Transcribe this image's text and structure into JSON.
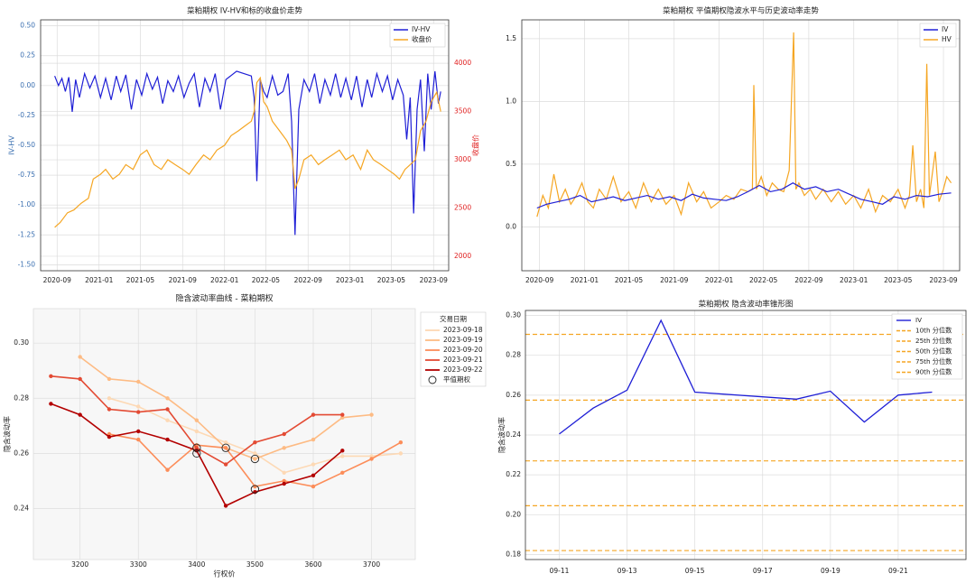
{
  "chart_data": [
    {
      "type": "line",
      "title": "菜粕期权 IV-HV和标的收盘价走势",
      "xlabel": "",
      "ylabel": "IV-HV",
      "ylabel_right": "收盘价",
      "ylim": [
        -1.55,
        0.55
      ],
      "ylim_right": [
        1850,
        4450
      ],
      "yticks": [
        0.5,
        0.25,
        0.0,
        -0.25,
        -0.5,
        -0.75,
        -1.0,
        -1.25,
        -1.5
      ],
      "yticks_right": [
        4000,
        3500,
        3000,
        2500,
        2000
      ],
      "xticks": [
        "2020-09",
        "2021-01",
        "2021-05",
        "2021-09",
        "2022-01",
        "2022-05",
        "2022-09",
        "2023-01",
        "2023-05",
        "2023-09"
      ],
      "xrange": [
        "2020-07-15",
        "2023-10-15"
      ],
      "grid": true,
      "legend": "top-right",
      "colors": {
        "IV-HV": "#1f1fd6",
        "收盘价": "#f5a623",
        "right_axis": "#e02020",
        "left_axis": "#3a6fb0"
      },
      "series": [
        {
          "name": "IV-HV",
          "axis": "left",
          "x": [
            "2020-08-25",
            "2020-09-05",
            "2020-09-15",
            "2020-09-25",
            "2020-10-05",
            "2020-10-15",
            "2020-10-25",
            "2020-11-05",
            "2020-11-20",
            "2020-12-05",
            "2020-12-20",
            "2021-01-05",
            "2021-01-20",
            "2021-02-05",
            "2021-02-20",
            "2021-03-05",
            "2021-03-20",
            "2021-04-05",
            "2021-04-20",
            "2021-05-05",
            "2021-05-20",
            "2021-06-05",
            "2021-06-20",
            "2021-07-05",
            "2021-07-20",
            "2021-08-05",
            "2021-08-20",
            "2021-09-05",
            "2021-09-20",
            "2021-10-05",
            "2021-10-20",
            "2021-11-05",
            "2021-11-20",
            "2021-12-05",
            "2021-12-20",
            "2022-01-05",
            "2022-02-05",
            "2022-03-20",
            "2022-03-28",
            "2022-04-05",
            "2022-04-15",
            "2022-04-25",
            "2022-05-05",
            "2022-05-20",
            "2022-06-05",
            "2022-06-20",
            "2022-07-05",
            "2022-07-15",
            "2022-07-25",
            "2022-08-05",
            "2022-08-20",
            "2022-09-05",
            "2022-09-20",
            "2022-10-05",
            "2022-10-20",
            "2022-11-05",
            "2022-11-20",
            "2022-12-05",
            "2022-12-20",
            "2023-01-05",
            "2023-01-20",
            "2023-02-05",
            "2023-02-20",
            "2023-03-05",
            "2023-03-20",
            "2023-04-05",
            "2023-04-20",
            "2023-05-05",
            "2023-05-20",
            "2023-06-05",
            "2023-06-15",
            "2023-06-25",
            "2023-07-05",
            "2023-07-15",
            "2023-07-25",
            "2023-08-05",
            "2023-08-15",
            "2023-08-25",
            "2023-09-05",
            "2023-09-15",
            "2023-09-22"
          ],
          "values": [
            0.08,
            0.0,
            0.06,
            -0.05,
            0.07,
            -0.22,
            0.05,
            -0.1,
            0.1,
            -0.02,
            0.08,
            -0.1,
            0.06,
            -0.12,
            0.08,
            -0.05,
            0.09,
            -0.2,
            0.05,
            -0.08,
            0.1,
            -0.03,
            0.07,
            -0.15,
            0.04,
            -0.05,
            0.08,
            -0.1,
            0.02,
            0.1,
            -0.18,
            0.06,
            -0.05,
            0.1,
            -0.2,
            0.05,
            0.12,
            0.08,
            -0.1,
            -0.8,
            0.05,
            -0.05,
            -0.1,
            0.08,
            -0.08,
            -0.05,
            0.1,
            -0.3,
            -1.25,
            -0.2,
            0.05,
            -0.05,
            0.1,
            -0.15,
            0.05,
            -0.08,
            0.1,
            -0.1,
            0.06,
            -0.12,
            0.08,
            -0.18,
            0.05,
            -0.1,
            0.1,
            -0.05,
            0.08,
            -0.12,
            0.05,
            -0.08,
            -0.45,
            -0.1,
            -1.07,
            -0.2,
            0.05,
            -0.55,
            0.1,
            -0.2,
            0.12,
            -0.15,
            -0.05
          ]
        },
        {
          "name": "收盘价",
          "axis": "right",
          "x": [
            "2020-08-25",
            "2020-09-10",
            "2020-10-01",
            "2020-10-20",
            "2020-11-10",
            "2020-12-01",
            "2020-12-15",
            "2021-01-05",
            "2021-01-20",
            "2021-02-10",
            "2021-03-01",
            "2021-03-20",
            "2021-04-10",
            "2021-05-01",
            "2021-05-20",
            "2021-06-10",
            "2021-07-01",
            "2021-07-20",
            "2021-08-10",
            "2021-09-01",
            "2021-09-20",
            "2021-10-10",
            "2021-11-01",
            "2021-11-20",
            "2021-12-10",
            "2022-01-01",
            "2022-01-20",
            "2022-02-10",
            "2022-03-01",
            "2022-03-20",
            "2022-03-28",
            "2022-04-05",
            "2022-04-15",
            "2022-04-25",
            "2022-05-05",
            "2022-05-20",
            "2022-06-10",
            "2022-07-01",
            "2022-07-15",
            "2022-07-25",
            "2022-08-05",
            "2022-08-20",
            "2022-09-10",
            "2022-10-01",
            "2022-10-20",
            "2022-11-10",
            "2022-12-01",
            "2022-12-20",
            "2023-01-10",
            "2023-02-01",
            "2023-02-20",
            "2023-03-10",
            "2023-04-01",
            "2023-04-20",
            "2023-05-10",
            "2023-05-25",
            "2023-06-10",
            "2023-06-25",
            "2023-07-10",
            "2023-07-25",
            "2023-08-10",
            "2023-08-25",
            "2023-09-10",
            "2023-09-22"
          ],
          "values": [
            2300,
            2350,
            2450,
            2480,
            2550,
            2600,
            2800,
            2850,
            2900,
            2800,
            2850,
            2950,
            2900,
            3050,
            3100,
            2950,
            2900,
            3000,
            2950,
            2900,
            2850,
            2950,
            3050,
            3000,
            3100,
            3150,
            3250,
            3300,
            3350,
            3400,
            3500,
            3800,
            3850,
            3600,
            3550,
            3400,
            3300,
            3200,
            3100,
            2700,
            2800,
            3000,
            3050,
            2950,
            3000,
            3050,
            3100,
            3000,
            3050,
            2900,
            3100,
            3000,
            2950,
            2900,
            2850,
            2800,
            2900,
            2950,
            3000,
            3300,
            3400,
            3600,
            3700,
            3500
          ]
        }
      ]
    },
    {
      "type": "line",
      "title": "菜粕期权 平值期权隐波水平与历史波动率走势",
      "xlabel": "",
      "ylabel": "",
      "ylim": [
        -0.35,
        1.65
      ],
      "yticks": [
        1.5,
        1.0,
        0.5,
        0.0
      ],
      "xticks": [
        "2020-09",
        "2021-01",
        "2021-05",
        "2021-09",
        "2022-01",
        "2022-05",
        "2022-09",
        "2023-01",
        "2023-05",
        "2023-09"
      ],
      "xrange": [
        "2020-07-15",
        "2023-10-15"
      ],
      "grid": true,
      "legend": "top-right",
      "colors": {
        "IV": "#1f1fd6",
        "HV": "#f5a623"
      },
      "series": [
        {
          "name": "IV",
          "x": [
            "2020-08-25",
            "2020-09-20",
            "2020-10-20",
            "2020-11-20",
            "2020-12-20",
            "2021-01-20",
            "2021-02-20",
            "2021-03-20",
            "2021-04-20",
            "2021-05-20",
            "2021-06-20",
            "2021-07-20",
            "2021-08-20",
            "2021-09-20",
            "2021-10-20",
            "2021-11-20",
            "2021-12-20",
            "2022-01-20",
            "2022-02-20",
            "2022-03-20",
            "2022-04-20",
            "2022-05-20",
            "2022-06-20",
            "2022-07-20",
            "2022-08-20",
            "2022-09-20",
            "2022-10-20",
            "2022-11-20",
            "2022-12-20",
            "2023-01-20",
            "2023-02-20",
            "2023-03-20",
            "2023-04-20",
            "2023-05-20",
            "2023-06-20",
            "2023-07-20",
            "2023-08-20",
            "2023-09-22"
          ],
          "values": [
            0.15,
            0.18,
            0.2,
            0.22,
            0.25,
            0.2,
            0.22,
            0.24,
            0.21,
            0.23,
            0.25,
            0.22,
            0.24,
            0.21,
            0.26,
            0.23,
            0.22,
            0.21,
            0.24,
            0.28,
            0.33,
            0.28,
            0.3,
            0.35,
            0.3,
            0.32,
            0.28,
            0.3,
            0.26,
            0.22,
            0.2,
            0.18,
            0.24,
            0.22,
            0.25,
            0.24,
            0.26,
            0.27
          ]
        },
        {
          "name": "HV",
          "x": [
            "2020-08-25",
            "2020-09-10",
            "2020-09-25",
            "2020-10-10",
            "2020-10-25",
            "2020-11-10",
            "2020-11-25",
            "2020-12-10",
            "2020-12-25",
            "2021-01-10",
            "2021-01-25",
            "2021-02-10",
            "2021-03-01",
            "2021-03-20",
            "2021-04-10",
            "2021-05-01",
            "2021-05-20",
            "2021-06-10",
            "2021-07-01",
            "2021-07-20",
            "2021-08-10",
            "2021-09-01",
            "2021-09-20",
            "2021-10-10",
            "2021-11-01",
            "2021-11-20",
            "2021-12-10",
            "2022-01-01",
            "2022-01-20",
            "2022-02-10",
            "2022-03-01",
            "2022-03-20",
            "2022-04-01",
            "2022-04-05",
            "2022-04-12",
            "2022-04-25",
            "2022-05-10",
            "2022-05-25",
            "2022-06-10",
            "2022-06-25",
            "2022-07-10",
            "2022-07-22",
            "2022-07-28",
            "2022-08-05",
            "2022-08-20",
            "2022-09-05",
            "2022-09-20",
            "2022-10-10",
            "2022-11-01",
            "2022-11-20",
            "2022-12-10",
            "2023-01-01",
            "2023-01-20",
            "2023-02-10",
            "2023-03-01",
            "2023-03-20",
            "2023-04-10",
            "2023-05-01",
            "2023-05-20",
            "2023-06-01",
            "2023-06-10",
            "2023-06-20",
            "2023-07-01",
            "2023-07-10",
            "2023-07-18",
            "2023-07-25",
            "2023-08-10",
            "2023-08-20",
            "2023-09-01",
            "2023-09-10",
            "2023-09-22"
          ],
          "values": [
            0.08,
            0.25,
            0.15,
            0.42,
            0.2,
            0.3,
            0.18,
            0.25,
            0.35,
            0.2,
            0.15,
            0.3,
            0.22,
            0.4,
            0.2,
            0.28,
            0.15,
            0.35,
            0.2,
            0.3,
            0.18,
            0.25,
            0.1,
            0.35,
            0.2,
            0.28,
            0.15,
            0.2,
            0.25,
            0.22,
            0.3,
            0.28,
            0.3,
            1.13,
            0.3,
            0.4,
            0.25,
            0.35,
            0.3,
            0.28,
            0.45,
            1.55,
            0.3,
            0.35,
            0.25,
            0.3,
            0.22,
            0.3,
            0.2,
            0.28,
            0.18,
            0.25,
            0.15,
            0.3,
            0.12,
            0.25,
            0.2,
            0.3,
            0.15,
            0.25,
            0.65,
            0.2,
            0.3,
            0.15,
            1.3,
            0.25,
            0.6,
            0.2,
            0.3,
            0.4,
            0.35
          ]
        }
      ]
    },
    {
      "type": "line",
      "title": "隐含波动率曲线 - 菜粕期权",
      "xlabel": "行权价",
      "ylabel": "隐含波动率",
      "xlim": [
        3120,
        3775
      ],
      "ylim": [
        0.2215,
        0.3125
      ],
      "xticks": [
        3200,
        3300,
        3400,
        3500,
        3600,
        3700
      ],
      "yticks": [
        0.3,
        0.28,
        0.26,
        0.24
      ],
      "grid": true,
      "legend": "top-right",
      "legend_title": "交易日期",
      "atm_label": "平值期权",
      "series": [
        {
          "name": "2023-09-18",
          "color": "#fdd9b5",
          "x": [
            3250,
            3300,
            3350,
            3400,
            3450,
            3500,
            3550,
            3600,
            3650,
            3700,
            3750
          ],
          "values": [
            0.28,
            0.277,
            0.272,
            0.268,
            0.264,
            0.26,
            0.253,
            0.256,
            0.259,
            0.259,
            0.26
          ],
          "atm": {
            "x": 3450,
            "y": 0.262
          }
        },
        {
          "name": "2023-09-19",
          "color": "#fdbb84",
          "x": [
            3200,
            3250,
            3300,
            3350,
            3400,
            3450,
            3500,
            3550,
            3600,
            3650,
            3700
          ],
          "values": [
            0.295,
            0.287,
            0.286,
            0.28,
            0.272,
            0.262,
            0.258,
            0.262,
            0.265,
            0.273,
            0.274
          ],
          "atm": {
            "x": 3500,
            "y": 0.258
          }
        },
        {
          "name": "2023-09-20",
          "color": "#fc8d59",
          "x": [
            3250,
            3300,
            3350,
            3400,
            3450,
            3500,
            3550,
            3600,
            3650,
            3700,
            3750
          ],
          "values": [
            0.267,
            0.265,
            0.254,
            0.263,
            0.262,
            0.248,
            0.25,
            0.248,
            0.253,
            0.258,
            0.264
          ],
          "atm": {
            "x": 3400,
            "y": 0.26
          }
        },
        {
          "name": "2023-09-21",
          "color": "#e34a33",
          "x": [
            3150,
            3200,
            3250,
            3300,
            3350,
            3400,
            3450,
            3500,
            3550,
            3600,
            3650
          ],
          "values": [
            0.288,
            0.287,
            0.276,
            0.275,
            0.276,
            0.262,
            0.256,
            0.264,
            0.267,
            0.274,
            0.274
          ],
          "atm": {
            "x": 3400,
            "y": 0.262
          }
        },
        {
          "name": "2023-09-22",
          "color": "#b30000",
          "x": [
            3150,
            3200,
            3250,
            3300,
            3350,
            3400,
            3450,
            3500,
            3550,
            3600,
            3650
          ],
          "values": [
            0.278,
            0.274,
            0.266,
            0.268,
            0.265,
            0.261,
            0.241,
            0.246,
            0.249,
            0.252,
            0.261
          ],
          "atm": {
            "x": 3500,
            "y": 0.247
          }
        }
      ]
    },
    {
      "type": "line",
      "title": "菜粕期权 隐含波动率锥形图",
      "xlabel": "",
      "ylabel": "隐含波动率",
      "ylim": [
        0.1775,
        0.3025
      ],
      "yticks": [
        0.3,
        0.28,
        0.26,
        0.24,
        0.22,
        0.2,
        0.18
      ],
      "xticks": [
        "09-11",
        "09-13",
        "09-15",
        "09-17",
        "09-19",
        "09-21"
      ],
      "xrange": [
        "2023-09-10",
        "2023-09-23"
      ],
      "grid": true,
      "legend": "top-right",
      "series": [
        {
          "name": "IV",
          "color": "#1f1fd6",
          "x": [
            "2023-09-11",
            "2023-09-12",
            "2023-09-13",
            "2023-09-14",
            "2023-09-15",
            "2023-09-18",
            "2023-09-19",
            "2023-09-20",
            "2023-09-21",
            "2023-09-22"
          ],
          "values": [
            0.2405,
            0.2535,
            0.2625,
            0.2975,
            0.2615,
            0.258,
            0.262,
            0.2465,
            0.26,
            0.2615
          ]
        }
      ],
      "reference_lines": [
        {
          "name": "10th 分位数",
          "value": 0.182
        },
        {
          "name": "25th 分位数",
          "value": 0.2045
        },
        {
          "name": "50th 分位数",
          "value": 0.227
        },
        {
          "name": "75th 分位数",
          "value": 0.2575
        },
        {
          "name": "90th 分位数",
          "value": 0.2905
        }
      ],
      "reference_color": "#f5a623"
    }
  ]
}
